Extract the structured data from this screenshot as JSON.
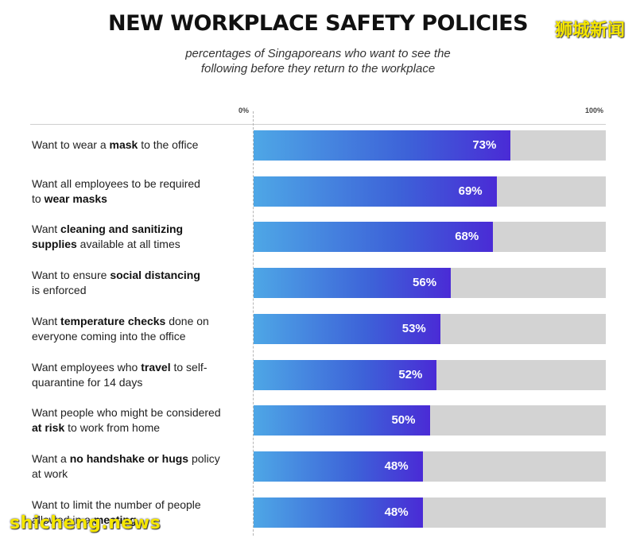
{
  "header": {
    "title": "NEW WORKPLACE SAFETY POLICIES",
    "subtitle_line1": "percentages of Singaporeans who want to see the",
    "subtitle_line2": "following before they return to the workplace"
  },
  "watermarks": {
    "top": "狮城新闻",
    "bottom": "shicheng.news"
  },
  "colors": {
    "bar_start": "#4ea7e6",
    "bar_end": "#4a2bd6",
    "track": "#d3d3d3",
    "watermark": "#f5e600"
  },
  "chart_data": {
    "type": "bar",
    "orientation": "horizontal",
    "title": "NEW WORKPLACE SAFETY POLICIES",
    "subtitle": "percentages of Singaporeans who want to see the following before they return to the workplace",
    "axis": {
      "min_label": "0%",
      "max_label": "100%",
      "xlim": [
        0,
        100
      ]
    },
    "categories": [
      {
        "parts": [
          [
            "Want to wear a ",
            false
          ],
          [
            "mask",
            true
          ],
          [
            " to the office",
            false
          ]
        ]
      },
      {
        "parts": [
          [
            "Want all employees to be required\nto ",
            false
          ],
          [
            "wear masks",
            true
          ]
        ]
      },
      {
        "parts": [
          [
            "Want ",
            false
          ],
          [
            "cleaning and sanitizing\nsupplies",
            true
          ],
          [
            " available at all times",
            false
          ]
        ]
      },
      {
        "parts": [
          [
            "Want to ensure ",
            false
          ],
          [
            "social distancing",
            true
          ],
          [
            "\nis enforced",
            false
          ]
        ]
      },
      {
        "parts": [
          [
            "Want ",
            false
          ],
          [
            "temperature checks",
            true
          ],
          [
            " done on\neveryone coming into the office",
            false
          ]
        ]
      },
      {
        "parts": [
          [
            "Want employees who ",
            false
          ],
          [
            "travel",
            true
          ],
          [
            " to self-\nquarantine for 14 days",
            false
          ]
        ]
      },
      {
        "parts": [
          [
            "Want people who might be considered\n",
            false
          ],
          [
            "at risk",
            true
          ],
          [
            " to work from home",
            false
          ]
        ]
      },
      {
        "parts": [
          [
            "Want a ",
            false
          ],
          [
            "no handshake or hugs",
            true
          ],
          [
            " policy\nat work",
            false
          ]
        ]
      },
      {
        "parts": [
          [
            "Want to limit the number of people\nallowed in a ",
            false
          ],
          [
            "meeting",
            true
          ]
        ]
      }
    ],
    "values": [
      73,
      69,
      68,
      56,
      53,
      52,
      50,
      48,
      48
    ],
    "value_labels": [
      "73%",
      "69%",
      "68%",
      "56%",
      "53%",
      "52%",
      "50%",
      "48%",
      "48%"
    ]
  }
}
